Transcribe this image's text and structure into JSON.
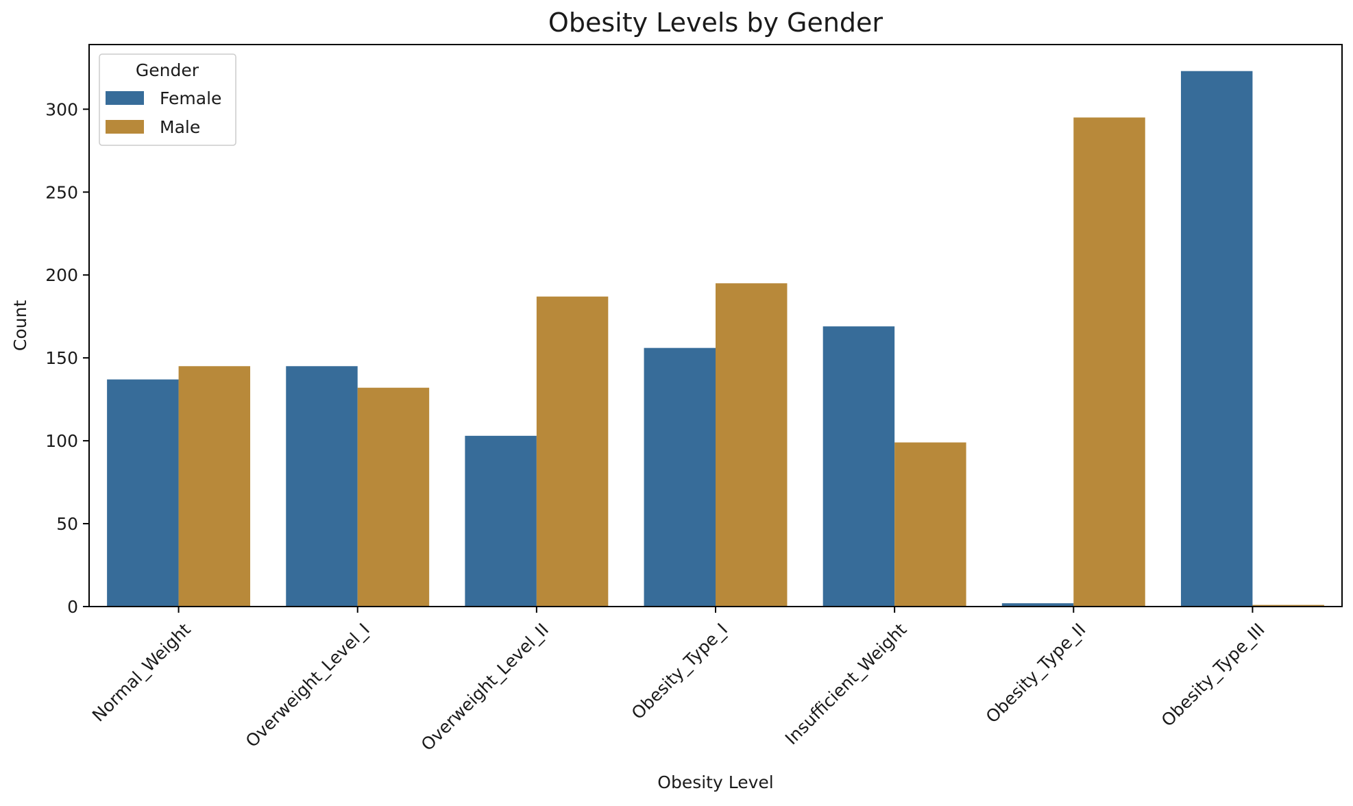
{
  "chart_data": {
    "type": "bar",
    "title": "Obesity Levels by Gender",
    "xlabel": "Obesity Level",
    "ylabel": "Count",
    "categories": [
      "Normal_Weight",
      "Overweight_Level_I",
      "Overweight_Level_II",
      "Obesity_Type_I",
      "Insufficient_Weight",
      "Obesity_Type_II",
      "Obesity_Type_III"
    ],
    "series": [
      {
        "name": "Female",
        "color": "#376c99",
        "values": [
          137,
          145,
          103,
          156,
          169,
          2,
          323
        ]
      },
      {
        "name": "Male",
        "color": "#b8893a",
        "values": [
          145,
          132,
          187,
          195,
          99,
          295,
          1
        ]
      }
    ],
    "ylim": [
      0,
      339
    ],
    "yticks": [
      0,
      50,
      100,
      150,
      200,
      250,
      300
    ],
    "grid": false,
    "legend": {
      "title": "Gender",
      "placement": "top-left"
    }
  }
}
